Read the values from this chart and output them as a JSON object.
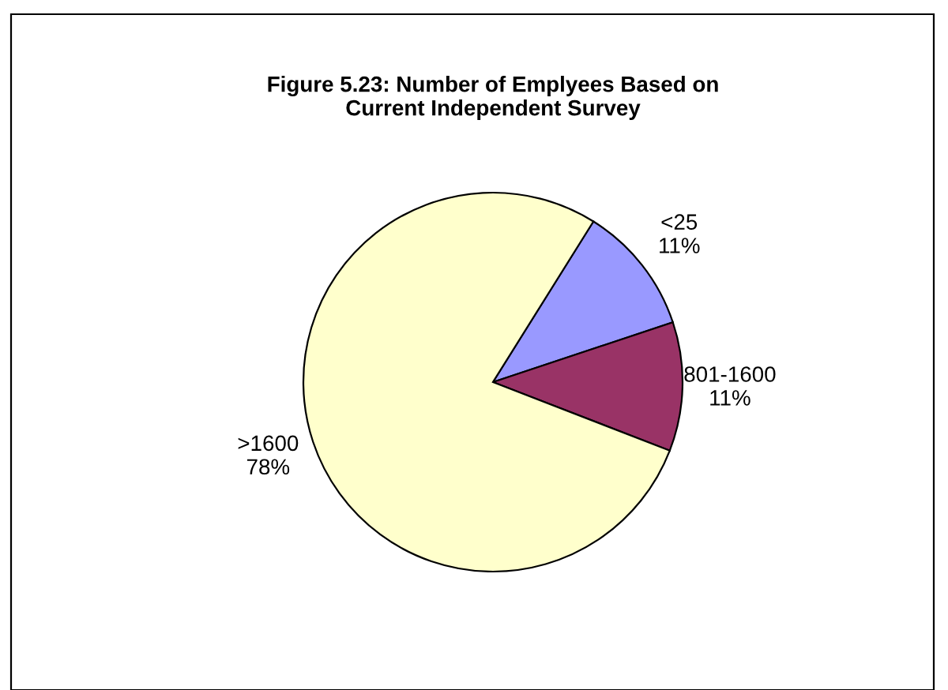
{
  "chart_data": {
    "type": "pie",
    "title": "Figure 5.23: Number of Emplyees Based on\nCurrent Independent Survey",
    "categories": [
      "<25",
      "801-1600",
      ">1600"
    ],
    "values": [
      11,
      11,
      78
    ],
    "colors": [
      "#9999ff",
      "#993366",
      "#ffffcc"
    ],
    "value_labels": [
      "11%",
      "11%",
      "78%"
    ],
    "legend": false
  }
}
